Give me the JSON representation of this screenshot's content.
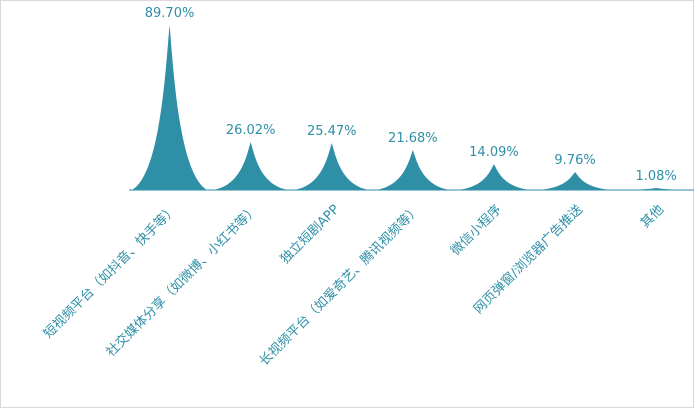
{
  "chart_data": {
    "type": "bar",
    "bar_shape": "peak",
    "categories": [
      "短视频平台（如抖音、快手等）",
      "社交媒体分享（如微博、小红书等）",
      "独立短剧APP",
      "长视频平台（如爱奇艺、腾讯视频等）",
      "微信小程序",
      "网页弹窗/浏览器广告推送",
      "其他"
    ],
    "values": [
      89.7,
      26.02,
      25.47,
      21.68,
      14.09,
      9.76,
      1.08
    ],
    "value_labels": [
      "89.70%",
      "26.02%",
      "25.47%",
      "21.68%",
      "14.09%",
      "9.76%",
      "1.08%"
    ],
    "unit": "%",
    "ylim": [
      0,
      89.7
    ],
    "grid": false,
    "legend": "none",
    "colors": {
      "bar": "#2e8fa6",
      "label": "#2e8fa6",
      "axis": "#d9d9d9"
    }
  }
}
